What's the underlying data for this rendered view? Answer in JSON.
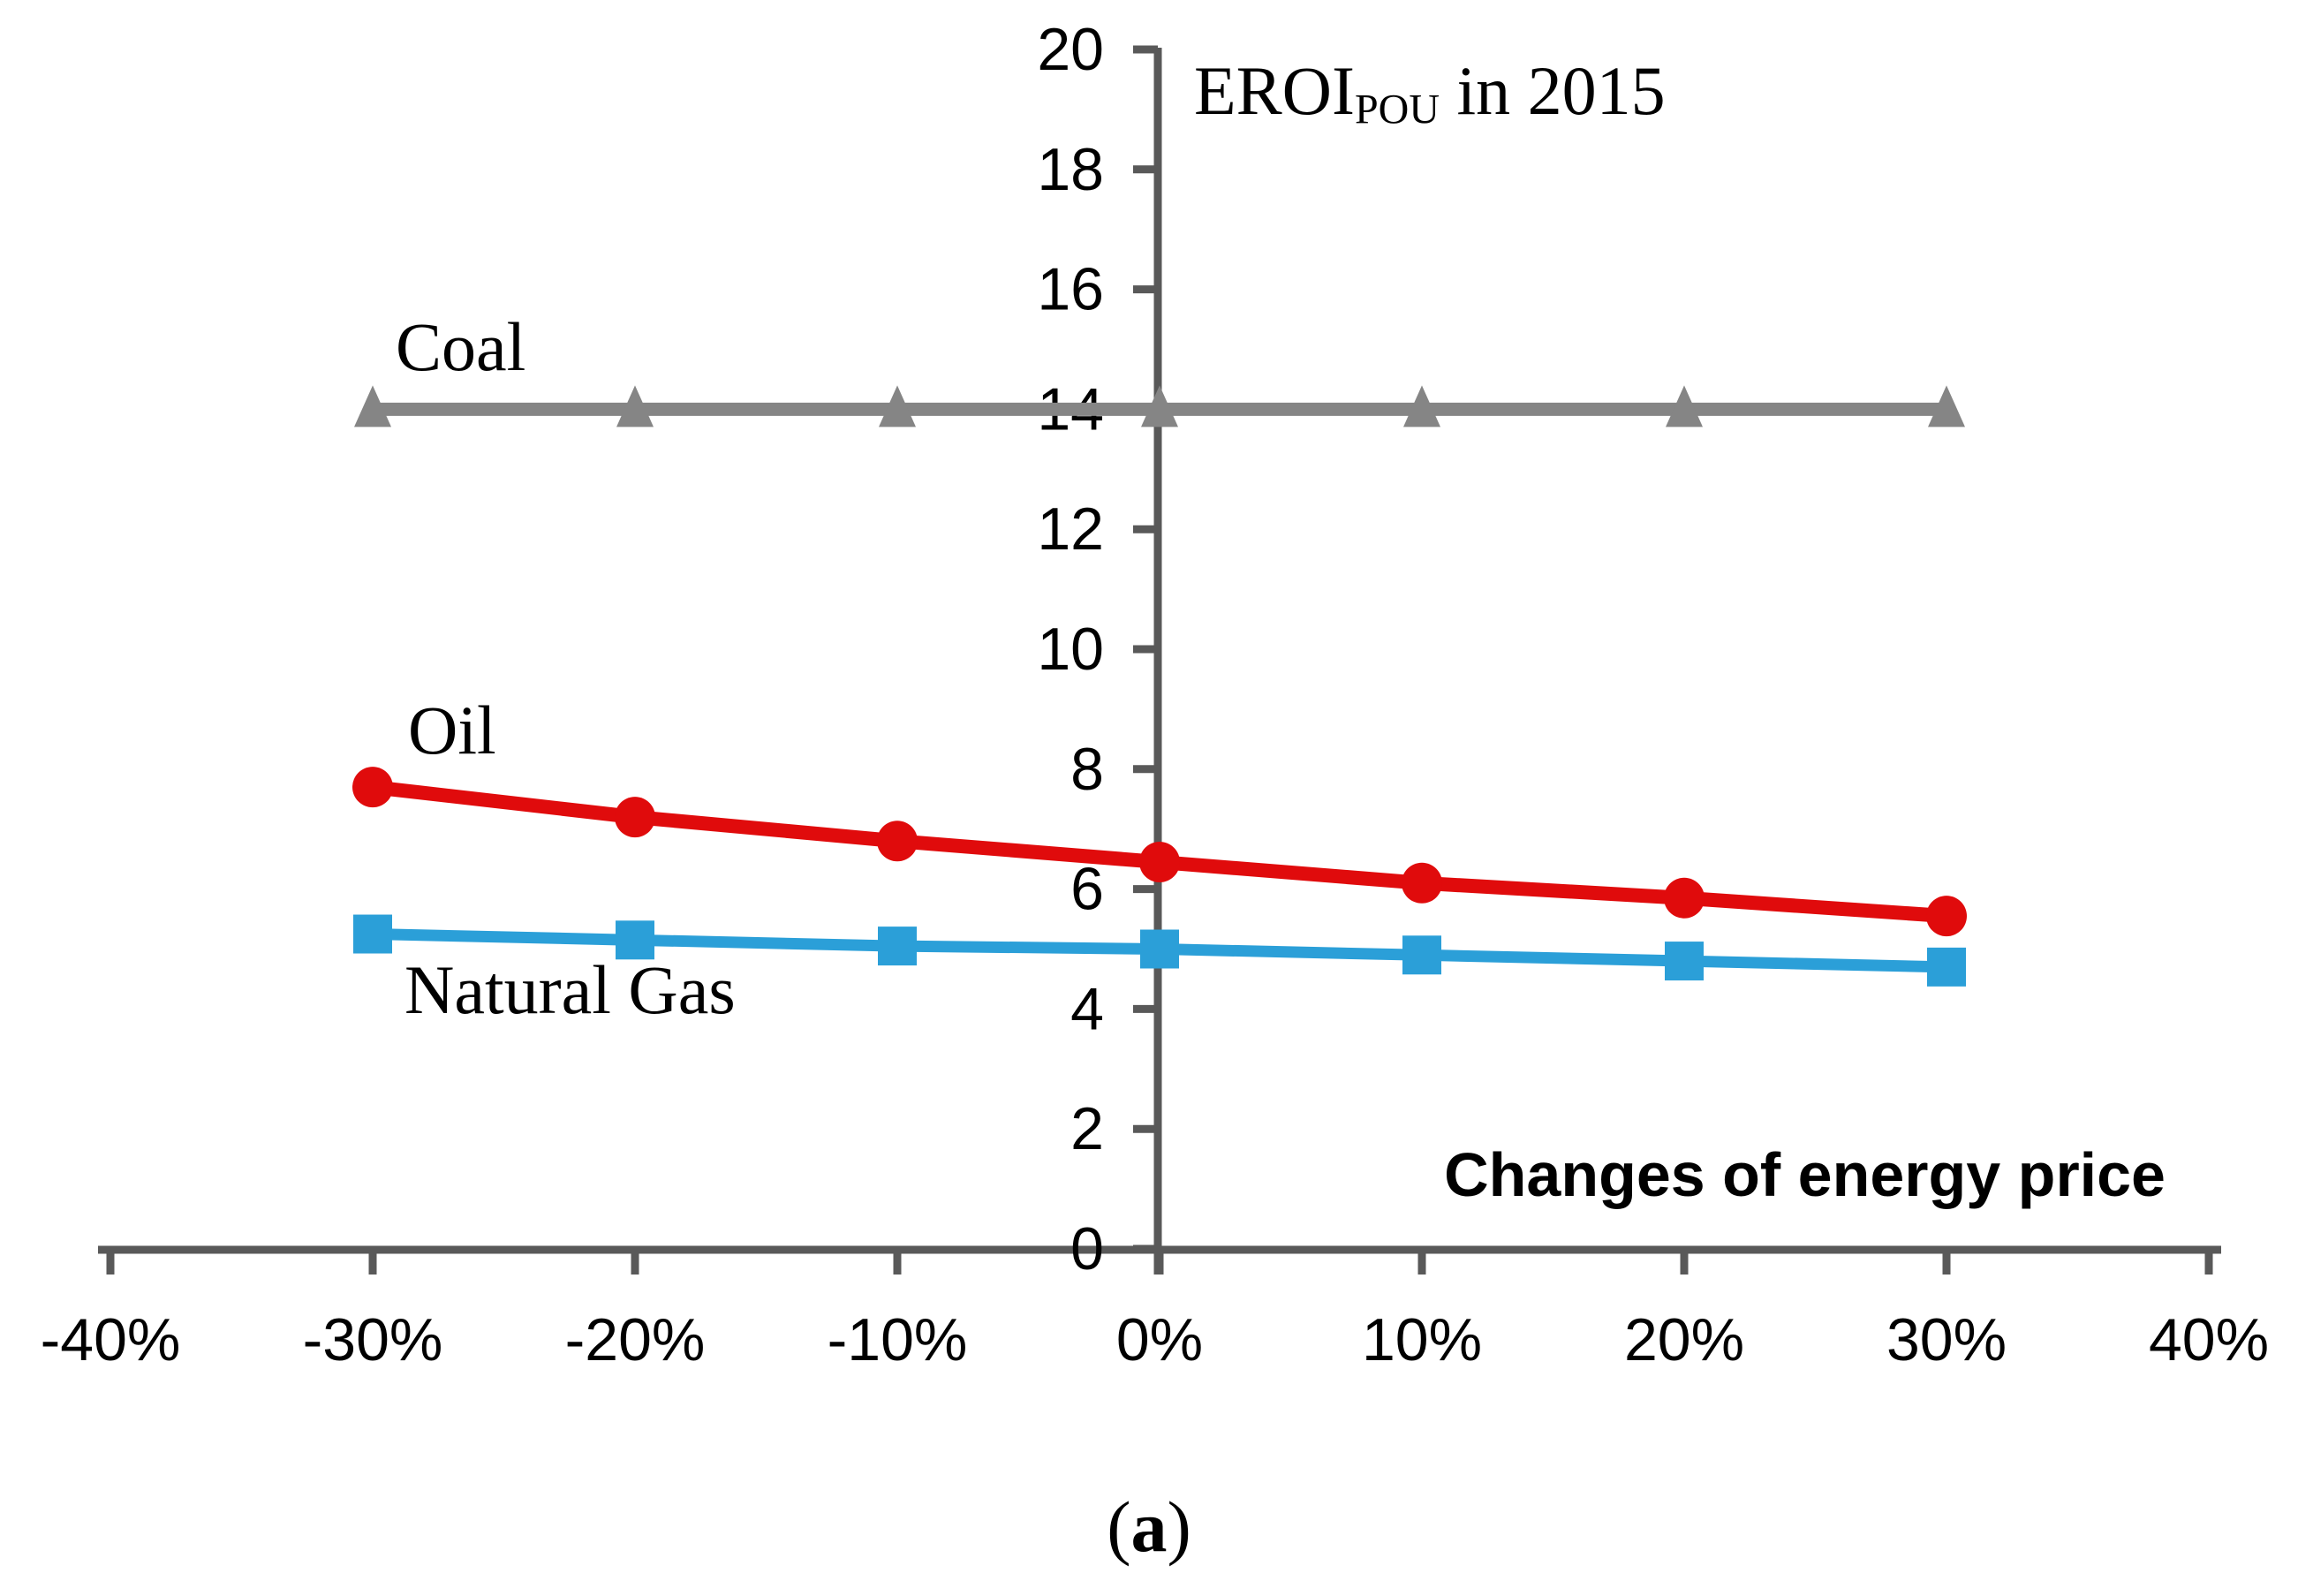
{
  "figure": {
    "title": {
      "main": "EROI",
      "subscript": "POU",
      "rest": " in 2015"
    },
    "x_axis_label": "Changes of energy price",
    "panel_label_open": "(",
    "panel_label_letter": "a",
    "panel_label_close": ")"
  },
  "chart_data": {
    "type": "line",
    "title": "EROI_POU in 2015",
    "xlabel": "Changes of energy price",
    "ylabel": "",
    "grid": false,
    "legend_position": "inline-labels-next-to-lines",
    "xlim": [
      -40,
      40
    ],
    "ylim": [
      0,
      20
    ],
    "x_ticks": [
      -40,
      -30,
      -20,
      -10,
      0,
      10,
      20,
      30,
      40
    ],
    "x_tick_labels": [
      "-40%",
      "-30%",
      "-20%",
      "-10%",
      "0%",
      "10%",
      "20%",
      "30%",
      "40%"
    ],
    "y_ticks": [
      0,
      2,
      4,
      6,
      8,
      10,
      12,
      14,
      16,
      18,
      20
    ],
    "y_tick_labels": [
      "0",
      "2",
      "4",
      "6",
      "8",
      "10",
      "12",
      "14",
      "16",
      "18",
      "20"
    ],
    "axis_color": "#595959",
    "x_values": [
      -30,
      -20,
      -10,
      0,
      10,
      20,
      30
    ],
    "categories": [
      "-30%",
      "-20%",
      "-10%",
      "0%",
      "10%",
      "20%",
      "30%"
    ],
    "series": [
      {
        "name": "Coal",
        "color": "#858585",
        "marker": "triangle",
        "values": [
          14,
          14,
          14,
          14,
          14,
          14,
          14
        ]
      },
      {
        "name": "Oil",
        "color": "#e00b0c",
        "marker": "circle",
        "values": [
          7.7,
          7.2,
          6.8,
          6.45,
          6.1,
          5.85,
          5.55
        ]
      },
      {
        "name": "Natural Gas",
        "color": "#2b9fd8",
        "marker": "square",
        "values": [
          5.25,
          5.15,
          5.05,
          5.0,
          4.9,
          4.8,
          4.7
        ]
      }
    ]
  }
}
